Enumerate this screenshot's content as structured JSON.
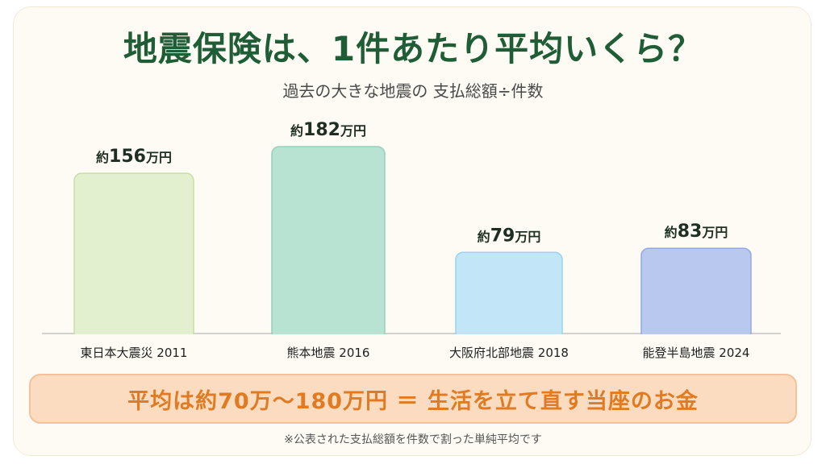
{
  "title": "地震保険は、1件あたり平均いくら？",
  "subtitle": "過去の大きな地震の 支払総額÷件数",
  "chart_data": {
    "type": "bar",
    "categories": [
      "東日本大震災 2011",
      "熊本地震 2016",
      "大阪府北部地震 2018",
      "能登半島地震 2024"
    ],
    "values": [
      156,
      182,
      79,
      83
    ],
    "value_labels": [
      {
        "prefix": "約",
        "number": "156",
        "unit": "万円"
      },
      {
        "prefix": "約",
        "number": "182",
        "unit": "万円"
      },
      {
        "prefix": "約",
        "number": "79",
        "unit": "万円"
      },
      {
        "prefix": "約",
        "number": "83",
        "unit": "万円"
      }
    ],
    "bar_colors": [
      {
        "fill": "#e3f0cf",
        "stroke": "#c6e0a4"
      },
      {
        "fill": "#b8e2d2",
        "stroke": "#93d2bd"
      },
      {
        "fill": "#c2e5f7",
        "stroke": "#98d3ef"
      },
      {
        "fill": "#b8c8ef",
        "stroke": "#93a9e3"
      }
    ],
    "grid": false
  },
  "banner": {
    "text": "平均は約70万〜180万円 ＝ 生活を立て直す当座のお金"
  },
  "footnote": "※公表された支払総額を件数で割った単純平均です",
  "colors": {
    "title": "#1f5d36",
    "banner_text": "#e07b22",
    "banner_bg": "#fbdcc0"
  }
}
